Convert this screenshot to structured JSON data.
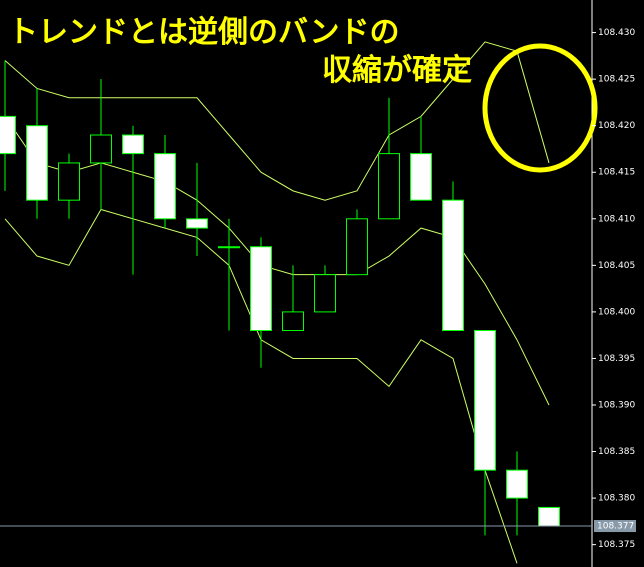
{
  "chart_data": {
    "type": "candlestick",
    "annotations": [
      "トレンドとは逆側のバンドの",
      "収縮が確定"
    ],
    "open": [
      108.421,
      108.42,
      108.412,
      108.416,
      108.419,
      108.417,
      108.41,
      108.407,
      108.407,
      108.398,
      108.4,
      108.404,
      108.41,
      108.417,
      108.412,
      108.398,
      108.383,
      108.379
    ],
    "high": [
      108.427,
      108.424,
      108.417,
      108.425,
      108.42,
      108.419,
      108.416,
      108.41,
      108.408,
      108.405,
      108.405,
      108.411,
      108.423,
      108.421,
      108.414,
      108.398,
      108.385,
      108.379
    ],
    "low": [
      108.413,
      108.41,
      108.41,
      108.411,
      108.404,
      108.409,
      108.406,
      108.398,
      108.394,
      108.398,
      108.4,
      108.404,
      108.41,
      108.412,
      108.398,
      108.376,
      108.376,
      108.377
    ],
    "close": [
      108.417,
      108.412,
      108.416,
      108.419,
      108.417,
      108.41,
      108.409,
      108.407,
      108.398,
      108.4,
      108.404,
      108.41,
      108.417,
      108.412,
      108.398,
      108.383,
      108.38,
      108.377
    ],
    "up_color": "#000000",
    "down_color": "#ffffff",
    "candle_outline": "#00ff00",
    "series": [
      {
        "color": "#ccff66",
        "values": [
          108.427,
          108.424,
          108.423,
          108.423,
          108.423,
          108.423,
          108.423,
          108.419,
          108.415,
          108.413,
          108.412,
          108.413,
          108.419,
          108.421,
          108.425,
          108.429,
          108.428,
          108.416
        ]
      },
      {
        "color": "#ccff66",
        "values": [
          108.421,
          108.416,
          108.415,
          108.416,
          108.415,
          108.414,
          108.412,
          108.409,
          108.405,
          108.404,
          108.404,
          108.404,
          108.406,
          108.409,
          108.408,
          108.403,
          108.397,
          108.39
        ]
      },
      {
        "color": "#ccff66",
        "values": [
          108.41,
          108.406,
          108.405,
          108.411,
          108.41,
          108.409,
          108.408,
          108.405,
          108.397,
          108.395,
          108.395,
          108.395,
          108.392,
          108.397,
          108.395,
          108.383,
          108.373,
          null
        ]
      }
    ],
    "current_price": {
      "value": 108.377,
      "label": "108.377"
    },
    "ylim": [
      108.3726,
      108.4335
    ],
    "yticks": [
      {
        "value": 108.43,
        "label": "108.430"
      },
      {
        "value": 108.425,
        "label": "108.425"
      },
      {
        "value": 108.42,
        "label": "108.420"
      },
      {
        "value": 108.415,
        "label": "108.415"
      },
      {
        "value": 108.41,
        "label": "108.410"
      },
      {
        "value": 108.405,
        "label": "108.405"
      },
      {
        "value": 108.4,
        "label": "108.400"
      },
      {
        "value": 108.395,
        "label": "108.395"
      },
      {
        "value": 108.39,
        "label": "108.390"
      },
      {
        "value": 108.385,
        "label": "108.385"
      },
      {
        "value": 108.38,
        "label": "108.380"
      },
      {
        "value": 108.375,
        "label": "108.375"
      }
    ]
  }
}
